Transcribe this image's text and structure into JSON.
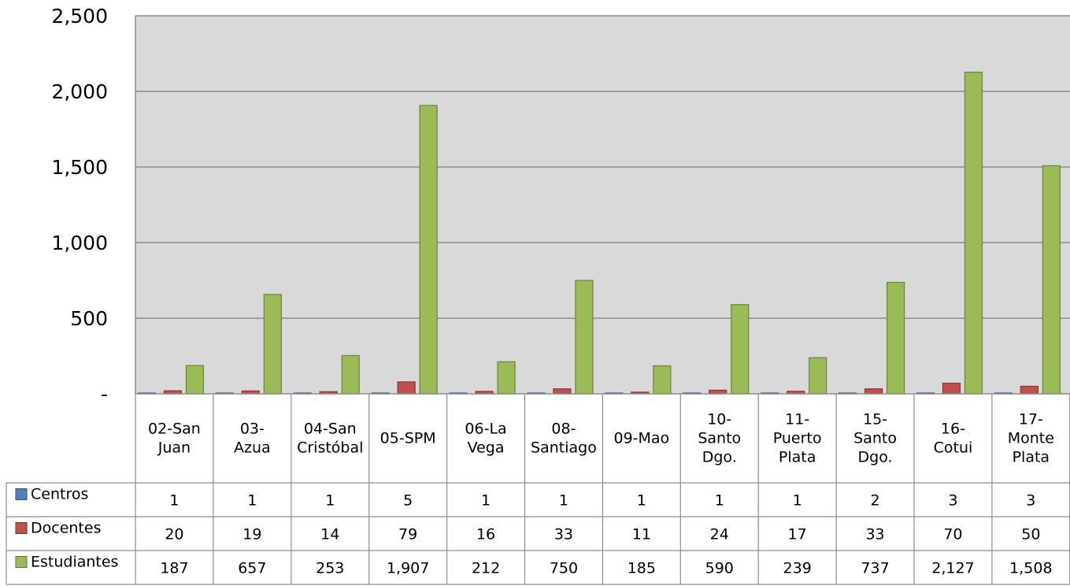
{
  "chart_data": {
    "type": "bar",
    "ylim": [
      0,
      2500
    ],
    "y_ticks": [
      "-",
      "500",
      "1,000",
      "1,500",
      "2,000",
      "2,500"
    ],
    "grid": true,
    "legend": "data-table",
    "categories": [
      [
        "02-San",
        "Juan"
      ],
      [
        "03-",
        "Azua"
      ],
      [
        "04-San",
        "Cristóbal"
      ],
      [
        "05-SPM"
      ],
      [
        "06-La",
        "Vega"
      ],
      [
        "08-",
        "Santiago"
      ],
      [
        "09-Mao"
      ],
      [
        "10-",
        "Santo",
        "Dgo."
      ],
      [
        "11-",
        "Puerto",
        "Plata"
      ],
      [
        "15-",
        "Santo",
        "Dgo."
      ],
      [
        "16-",
        "Cotui"
      ],
      [
        "17-",
        "Monte",
        "Plata"
      ]
    ],
    "series": [
      {
        "name": "Centros",
        "color": "#4f81bd",
        "values": [
          1,
          1,
          1,
          5,
          1,
          1,
          1,
          1,
          1,
          2,
          3,
          3
        ],
        "labels": [
          "1",
          "1",
          "1",
          "5",
          "1",
          "1",
          "1",
          "1",
          "1",
          "2",
          "3",
          "3"
        ]
      },
      {
        "name": "Docentes",
        "color": "#c0504d",
        "values": [
          20,
          19,
          14,
          79,
          16,
          33,
          11,
          24,
          17,
          33,
          70,
          50
        ],
        "labels": [
          "20",
          "19",
          "14",
          "79",
          "16",
          "33",
          "11",
          "24",
          "17",
          "33",
          "70",
          "50"
        ]
      },
      {
        "name": "Estudiantes",
        "color": "#9bbb59",
        "values": [
          187,
          657,
          253,
          1907,
          212,
          750,
          185,
          590,
          239,
          737,
          2127,
          1508
        ],
        "labels": [
          "187",
          "657",
          "253",
          "1,907",
          "212",
          "750",
          "185",
          "590",
          "239",
          "737",
          "2,127",
          "1,508"
        ]
      }
    ]
  }
}
